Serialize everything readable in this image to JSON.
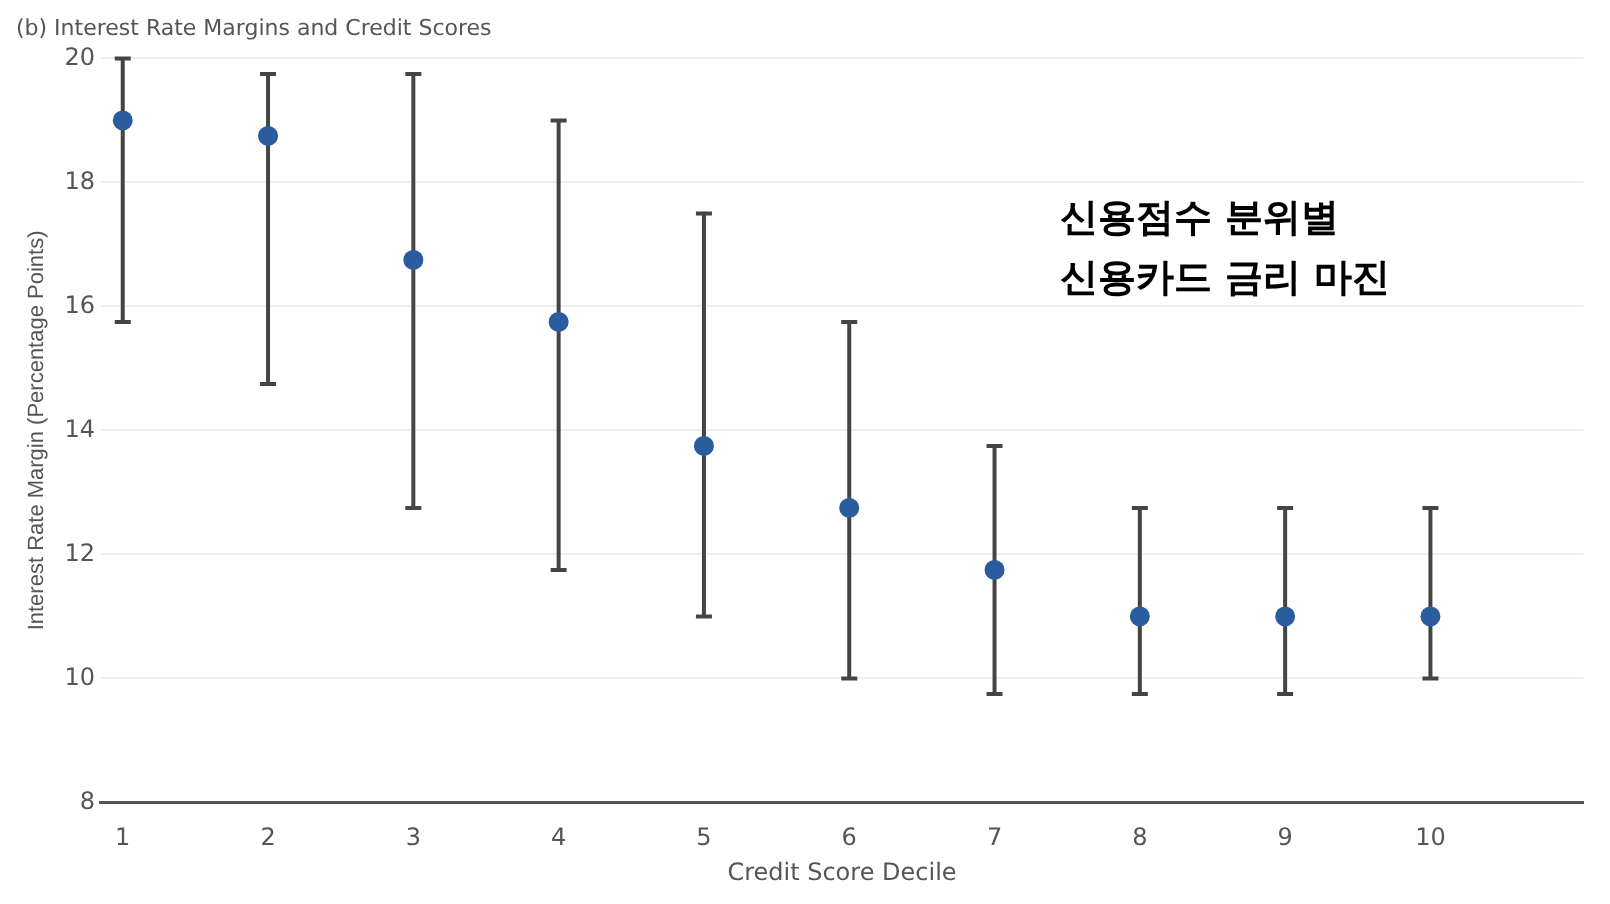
{
  "chart_data": {
    "type": "scatter",
    "title": "(b) Interest Rate Margins and Credit Scores",
    "xlabel": "Credit Score Decile",
    "ylabel": "Interest Rate Margin (Percentage Points)",
    "annotations": [
      "신용점수 분위별\n신용카드 금리 마진"
    ],
    "x": [
      1,
      2,
      3,
      4,
      5,
      6,
      7,
      8,
      9,
      10
    ],
    "series": [
      {
        "color": "#2b5c9e",
        "values": [
          19,
          18.75,
          16.75,
          15.75,
          13.75,
          12.75,
          11.75,
          11,
          11,
          11
        ],
        "errors": [
          [
            15.75,
            20
          ],
          [
            14.75,
            19.75
          ],
          [
            12.75,
            19.75
          ],
          [
            11.75,
            19
          ],
          [
            11,
            17.5
          ],
          [
            10,
            15.75
          ],
          [
            9.75,
            13.75
          ],
          [
            9.75,
            12.75
          ],
          [
            9.75,
            12.75
          ],
          [
            10,
            12.75
          ]
        ]
      }
    ],
    "xlim": [
      0.85,
      11.05
    ],
    "xticks": [
      1,
      2,
      3,
      4,
      5,
      6,
      7,
      8,
      9,
      10
    ],
    "ylim": [
      8,
      20
    ],
    "yticks": [
      8,
      10,
      12,
      14,
      16,
      18,
      20
    ],
    "grid": "y",
    "legend": false,
    "marker": "circle"
  }
}
